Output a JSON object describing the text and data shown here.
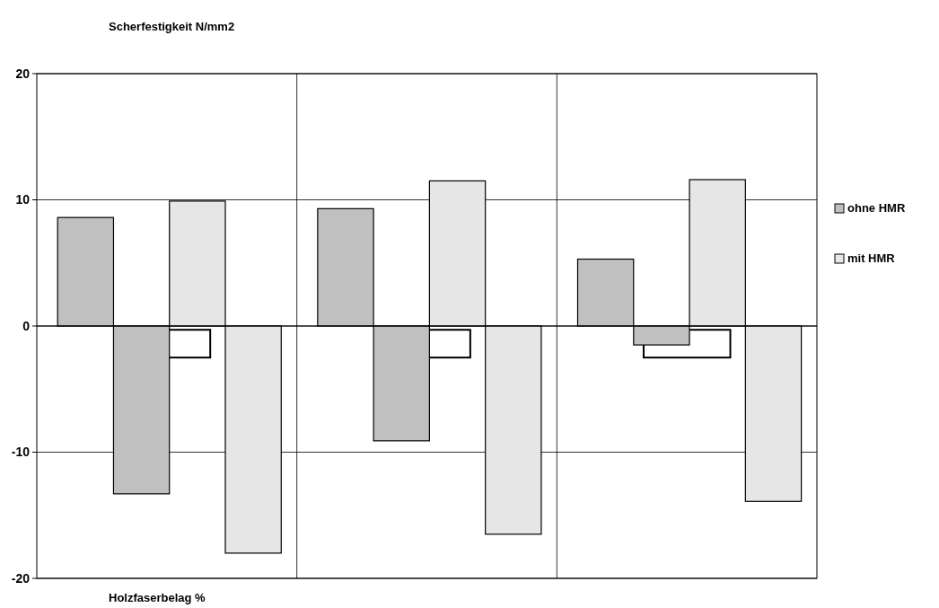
{
  "chart_data": {
    "type": "bar",
    "ylabel": "Scherfestigkeit N/mm2",
    "xlabel": "Holzfaserbelag %",
    "categories": [
      null,
      null,
      null
    ],
    "series": [
      {
        "name": "ohne HMR",
        "color": "#c0c0c0",
        "values": [
          8.6,
          9.3,
          5.3
        ]
      },
      {
        "color": "#c0c0c0",
        "values": [
          -13.3,
          -9.1,
          -1.5
        ]
      },
      {
        "name": "mit HMR",
        "color": "#e6e6e6",
        "values": [
          9.9,
          11.5,
          11.6
        ]
      },
      {
        "color": "#e6e6e6",
        "values": [
          -18,
          -16.5,
          -13.9
        ]
      }
    ],
    "ylim": [
      -20,
      20
    ],
    "yticks": [
      -20,
      -10,
      0,
      10,
      20
    ],
    "grid": true,
    "legend": "right"
  }
}
